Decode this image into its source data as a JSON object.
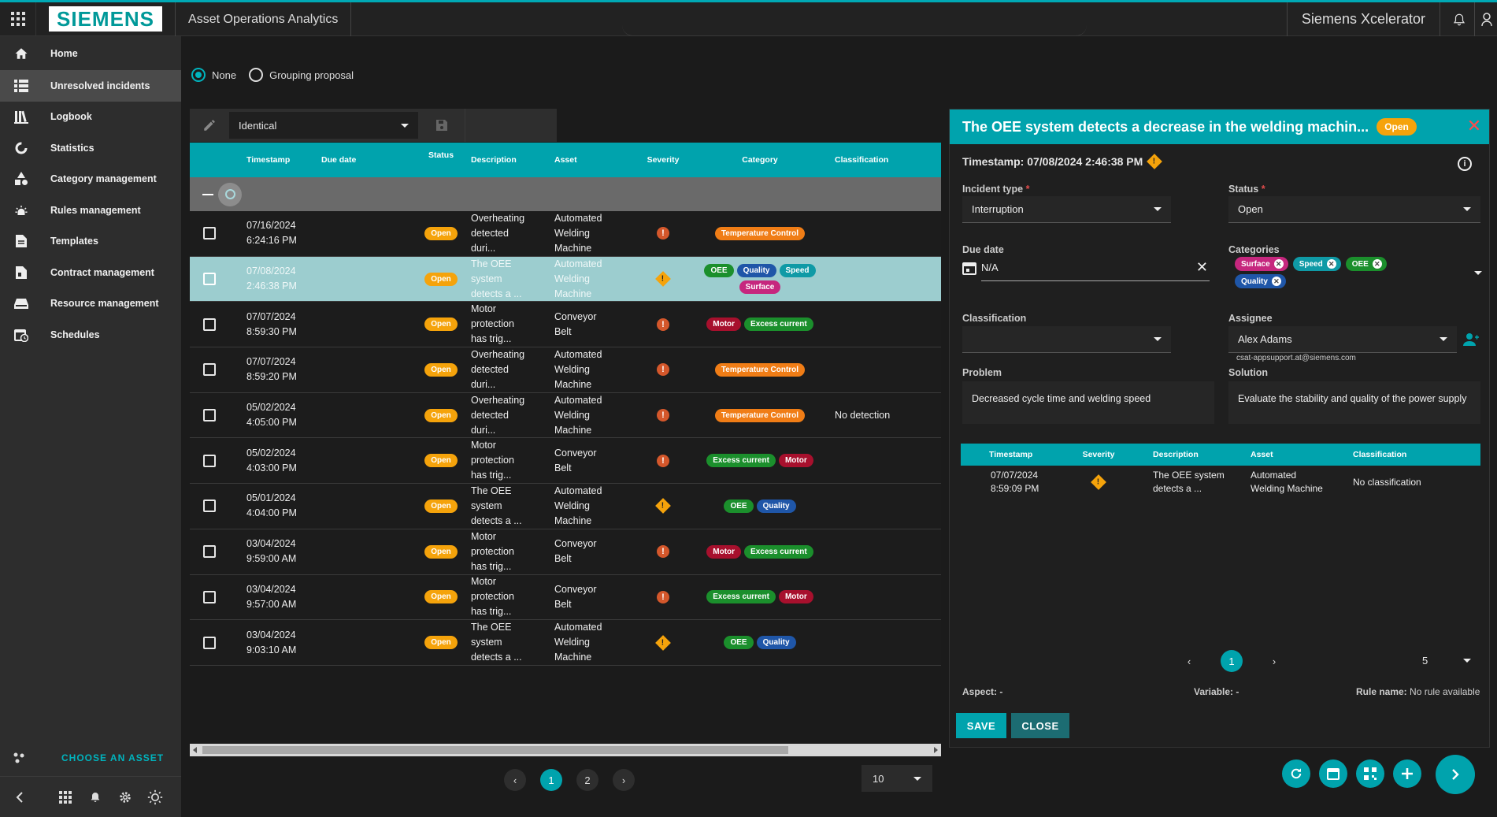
{
  "header": {
    "logo": "SIEMENS",
    "app_title": "Asset Operations Analytics",
    "brand": "Siemens Xcelerator"
  },
  "sidebar": {
    "items": [
      {
        "label": "Home",
        "icon": "home-icon"
      },
      {
        "label": "Unresolved incidents",
        "icon": "list-icon"
      },
      {
        "label": "Logbook",
        "icon": "logbook-icon"
      },
      {
        "label": "Statistics",
        "icon": "statistics-icon"
      },
      {
        "label": "Category management",
        "icon": "category-icon"
      },
      {
        "label": "Rules management",
        "icon": "rules-icon"
      },
      {
        "label": "Templates",
        "icon": "templates-icon"
      },
      {
        "label": "Contract management",
        "icon": "contract-icon"
      },
      {
        "label": "Resource management",
        "icon": "resource-icon"
      },
      {
        "label": "Schedules",
        "icon": "schedules-icon"
      }
    ],
    "choose_asset": "CHOOSE AN ASSET"
  },
  "grouping": {
    "none": "None",
    "proposal": "Grouping proposal"
  },
  "toolbar": {
    "filter_value": "Identical"
  },
  "table": {
    "headers": [
      "Timestamp",
      "Due date",
      "Status",
      "Description",
      "Asset",
      "Severity",
      "Category",
      "Classification"
    ],
    "rows": [
      {
        "ts1": "07/16/2024",
        "ts2": "6:24:16 PM",
        "status": "Open",
        "desc": [
          "Overheating",
          "detected",
          "duri..."
        ],
        "asset": [
          "Automated",
          "Welding",
          "Machine"
        ],
        "sev": "red",
        "cats": [
          [
            "Temperature Control",
            "#f07d16"
          ]
        ],
        "class": ""
      },
      {
        "ts1": "07/08/2024",
        "ts2": "2:46:38 PM",
        "status": "Open",
        "desc": [
          "The OEE",
          "system",
          "detects a ..."
        ],
        "asset": [
          "Automated",
          "Welding",
          "Machine"
        ],
        "sev": "yellow",
        "cats": [
          [
            "OEE",
            "#1b8f2c"
          ],
          [
            "Quality",
            "#1f56a8"
          ],
          [
            "Speed",
            "#0f9aa6"
          ],
          [
            "Surface",
            "#c6277e"
          ]
        ],
        "class": ""
      },
      {
        "ts1": "07/07/2024",
        "ts2": "8:59:30 PM",
        "status": "Open",
        "desc": [
          "Motor",
          "protection",
          "has trig..."
        ],
        "asset": [
          "Conveyor",
          "Belt"
        ],
        "sev": "red",
        "cats": [
          [
            "Motor",
            "#a7102d"
          ],
          [
            "Excess current",
            "#1b8f2c"
          ]
        ],
        "class": ""
      },
      {
        "ts1": "07/07/2024",
        "ts2": "8:59:20 PM",
        "status": "Open",
        "desc": [
          "Overheating",
          "detected",
          "duri..."
        ],
        "asset": [
          "Automated",
          "Welding",
          "Machine"
        ],
        "sev": "red",
        "cats": [
          [
            "Temperature Control",
            "#f07d16"
          ]
        ],
        "class": ""
      },
      {
        "ts1": "05/02/2024",
        "ts2": "4:05:00 PM",
        "status": "Open",
        "desc": [
          "Overheating",
          "detected",
          "duri..."
        ],
        "asset": [
          "Automated",
          "Welding",
          "Machine"
        ],
        "sev": "red",
        "cats": [
          [
            "Temperature Control",
            "#f07d16"
          ]
        ],
        "class": "No detection"
      },
      {
        "ts1": "05/02/2024",
        "ts2": "4:03:00 PM",
        "status": "Open",
        "desc": [
          "Motor",
          "protection",
          "has trig..."
        ],
        "asset": [
          "Conveyor",
          "Belt"
        ],
        "sev": "red",
        "cats": [
          [
            "Excess current",
            "#1b8f2c"
          ],
          [
            "Motor",
            "#a7102d"
          ]
        ],
        "class": ""
      },
      {
        "ts1": "05/01/2024",
        "ts2": "4:04:00 PM",
        "status": "Open",
        "desc": [
          "The OEE",
          "system",
          "detects a ..."
        ],
        "asset": [
          "Automated",
          "Welding",
          "Machine"
        ],
        "sev": "yellow",
        "cats": [
          [
            "OEE",
            "#1b8f2c"
          ],
          [
            "Quality",
            "#1f56a8"
          ]
        ],
        "class": ""
      },
      {
        "ts1": "03/04/2024",
        "ts2": "9:59:00 AM",
        "status": "Open",
        "desc": [
          "Motor",
          "protection",
          "has trig..."
        ],
        "asset": [
          "Conveyor",
          "Belt"
        ],
        "sev": "red",
        "cats": [
          [
            "Motor",
            "#a7102d"
          ],
          [
            "Excess current",
            "#1b8f2c"
          ]
        ],
        "class": ""
      },
      {
        "ts1": "03/04/2024",
        "ts2": "9:57:00 AM",
        "status": "Open",
        "desc": [
          "Motor",
          "protection",
          "has trig..."
        ],
        "asset": [
          "Conveyor",
          "Belt"
        ],
        "sev": "red",
        "cats": [
          [
            "Excess current",
            "#1b8f2c"
          ],
          [
            "Motor",
            "#a7102d"
          ]
        ],
        "class": ""
      },
      {
        "ts1": "03/04/2024",
        "ts2": "9:03:10 AM",
        "status": "Open",
        "desc": [
          "The OEE",
          "system",
          "detects a ..."
        ],
        "asset": [
          "Automated",
          "Welding",
          "Machine"
        ],
        "sev": "yellow",
        "cats": [
          [
            "OEE",
            "#1b8f2c"
          ],
          [
            "Quality",
            "#1f56a8"
          ]
        ],
        "class": ""
      }
    ],
    "selected_row": 1,
    "pages": [
      "1",
      "2"
    ],
    "current_page": "1",
    "per_page": "10"
  },
  "detail": {
    "title": "The OEE system detects a decrease in the welding machin...",
    "status_badge": "Open",
    "timestamp": "Timestamp: 07/08/2024 2:46:38 PM",
    "incident_type_label": "Incident type",
    "incident_type": "Interruption",
    "status_label": "Status",
    "status": "Open",
    "due_date_label": "Due date",
    "due_date": "N/A",
    "categories_label": "Categories",
    "categories": [
      [
        "Surface",
        "#c6277e"
      ],
      [
        "Speed",
        "#0f9aa6"
      ],
      [
        "OEE",
        "#1b8f2c"
      ],
      [
        "Quality",
        "#1f56a8"
      ]
    ],
    "classification_label": "Classification",
    "classification": "",
    "assignee_label": "Assignee",
    "assignee": "Alex Adams",
    "assignee_email": "csat-appsupport.at@siemens.com",
    "problem_label": "Problem",
    "problem": "Decreased cycle time and welding speed",
    "solution_label": "Solution",
    "solution": "Evaluate the stability and quality of the power supply",
    "related": {
      "headers": [
        "Timestamp",
        "Severity",
        "Description",
        "Asset",
        "Classification"
      ],
      "rows": [
        {
          "ts1": "07/07/2024",
          "ts2": "8:59:09 PM",
          "sev": "yellow",
          "desc1": "The OEE system",
          "desc2": "detects a ...",
          "asset1": "Automated",
          "asset2": "Welding Machine",
          "class": "No classification"
        }
      ],
      "current_page": "1",
      "per_page": "5"
    },
    "aspect": "Aspect: -",
    "variable": "Variable: -",
    "rule_name_label": "Rule name:",
    "rule_name": "No rule available",
    "save_label": "SAVE",
    "close_label": "CLOSE"
  }
}
